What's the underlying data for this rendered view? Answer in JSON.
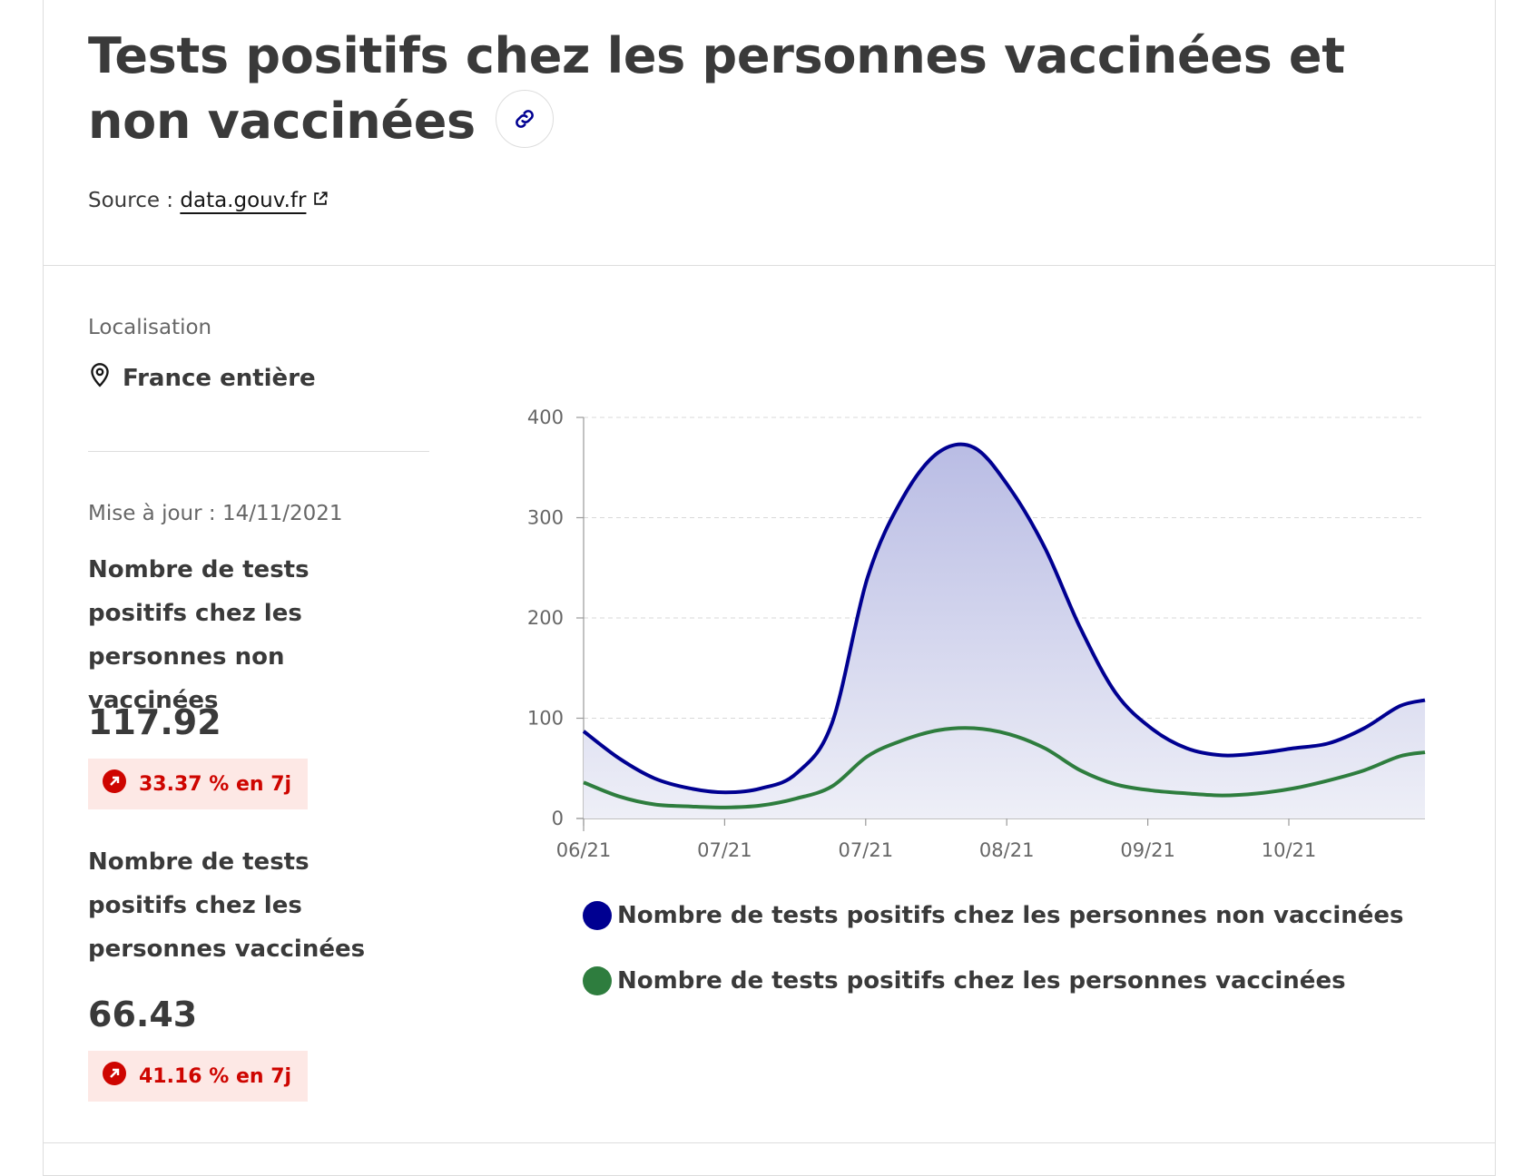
{
  "header": {
    "title": "Tests positifs chez les personnes vaccinées et non vaccinées",
    "source_label": "Source : ",
    "source_link": "data.gouv.fr"
  },
  "location": {
    "label": "Localisation",
    "value": "France entière"
  },
  "update": "Mise à jour : 14/11/2021",
  "kpis": [
    {
      "label": "Nombre de tests positifs chez les personnes non vaccinées",
      "value": "117.92",
      "trend": "33.37 % en 7j"
    },
    {
      "label": "Nombre de tests positifs chez les personnes vaccinées",
      "value": "66.43",
      "trend": "41.16 % en 7j"
    }
  ],
  "colors": {
    "unvaccinated": "#000091",
    "vaccinated": "#2e7d3e",
    "trend_up": "#ce0500",
    "badge_bg": "#fde8e5"
  },
  "icons": {
    "link": "link-icon",
    "external": "external-link-icon",
    "location": "map-pin-icon",
    "trend": "arrow-up-right-icon"
  },
  "chart_data": {
    "type": "area",
    "x": [
      "2021-06-01",
      "2021-06-08",
      "2021-06-15",
      "2021-06-22",
      "2021-06-29",
      "2021-07-06",
      "2021-07-13",
      "2021-07-20",
      "2021-07-27",
      "2021-08-03",
      "2021-08-10",
      "2021-08-17",
      "2021-08-24",
      "2021-08-31",
      "2021-09-07",
      "2021-09-14",
      "2021-09-21",
      "2021-09-28",
      "2021-10-05",
      "2021-10-12",
      "2021-10-19",
      "2021-10-26",
      "2021-11-02",
      "2021-11-09",
      "2021-11-14"
    ],
    "x_tick_labels": [
      "06/21",
      "07/21",
      "07/21",
      "08/21",
      "09/21",
      "10/21"
    ],
    "y_ticks": [
      0,
      100,
      200,
      300,
      400
    ],
    "ylim": [
      0,
      400
    ],
    "grid": true,
    "legend_position": "bottom",
    "series": [
      {
        "name": "Nombre de tests positifs chez les personnes non vaccinées",
        "color": "#000091",
        "values": [
          87,
          60,
          40,
          30,
          26,
          30,
          45,
          95,
          240,
          320,
          365,
          370,
          330,
          270,
          190,
          125,
          90,
          70,
          63,
          65,
          70,
          75,
          90,
          112,
          118
        ]
      },
      {
        "name": "Nombre de tests positifs chez les personnes vaccinées",
        "color": "#2e7d3e",
        "values": [
          36,
          22,
          14,
          12,
          11,
          13,
          20,
          32,
          62,
          78,
          88,
          90,
          84,
          70,
          48,
          34,
          28,
          25,
          23,
          25,
          30,
          38,
          48,
          62,
          66
        ]
      }
    ]
  }
}
